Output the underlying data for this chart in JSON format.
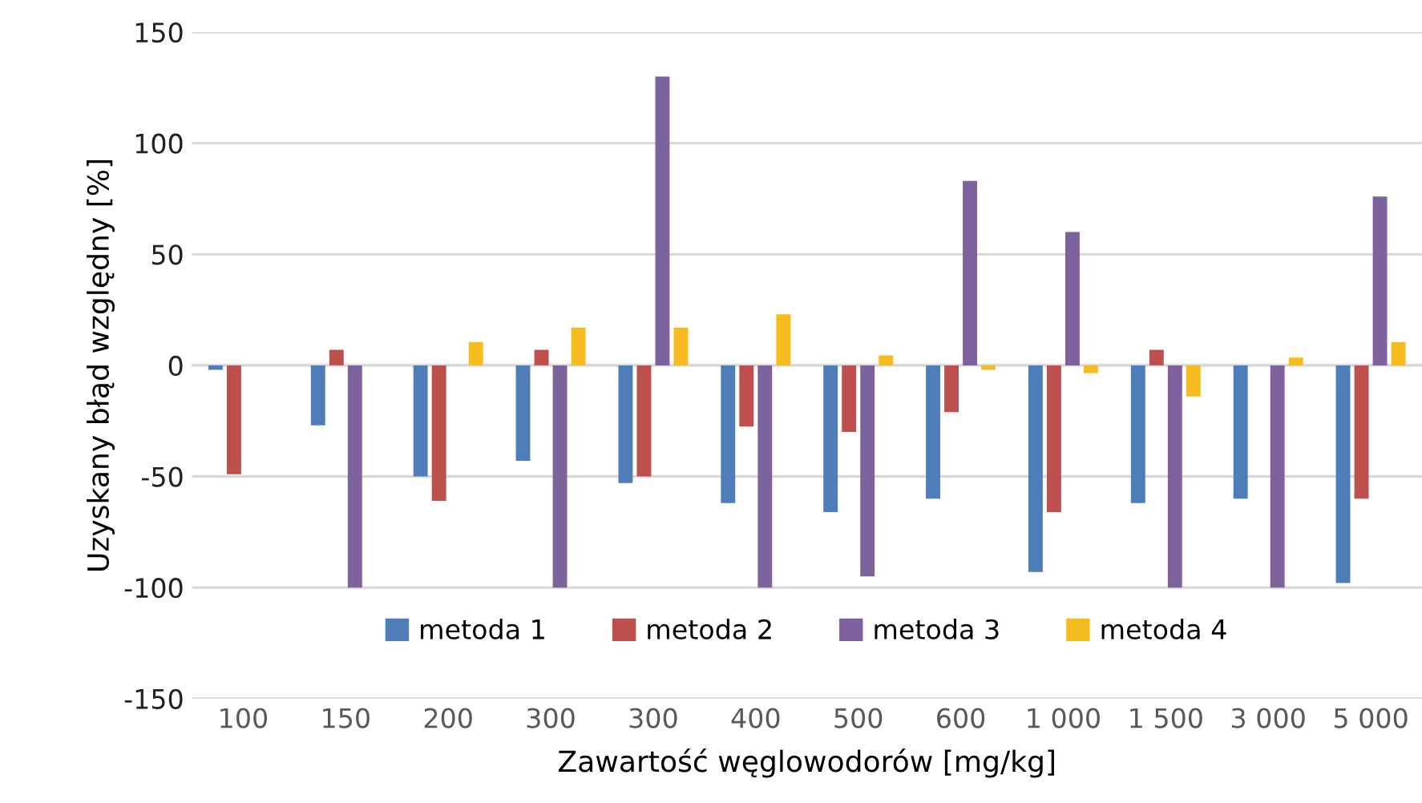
{
  "chart_data": {
    "type": "bar",
    "xlabel": "Zawartość węglowodorów [mg/kg]",
    "ylabel": "Uzyskany błąd względny [%]",
    "categories": [
      "100",
      "150",
      "200",
      "300",
      "300",
      "400",
      "500",
      "600",
      "1 000",
      "1 500",
      "3 000",
      "5 000"
    ],
    "series": [
      {
        "name": "metoda 1",
        "color": "#4f7dba",
        "values": [
          -2,
          -27,
          -50,
          -43,
          -53,
          -62,
          -66,
          -60,
          -93,
          -62,
          -60,
          -98
        ]
      },
      {
        "name": "metoda 2",
        "color": "#bd4f4c",
        "values": [
          -49,
          7,
          -61,
          7,
          -50,
          -27.5,
          -30,
          -21,
          -66,
          7,
          null,
          -60
        ]
      },
      {
        "name": "metoda 3",
        "color": "#7d629e",
        "values": [
          null,
          -100,
          null,
          -100,
          130,
          -100,
          -95,
          83,
          60,
          -100,
          -100,
          76
        ]
      },
      {
        "name": "metoda 4",
        "color": "#f6bc1f",
        "values": [
          null,
          null,
          10.5,
          17,
          17,
          23,
          4.5,
          -2,
          -3.5,
          -14,
          3.5,
          10.5
        ]
      }
    ],
    "ylim": [
      -150,
      150
    ],
    "yticks": [
      -150,
      -100,
      -50,
      0,
      50,
      100,
      150
    ],
    "grid": "y",
    "legend": "bottom"
  }
}
